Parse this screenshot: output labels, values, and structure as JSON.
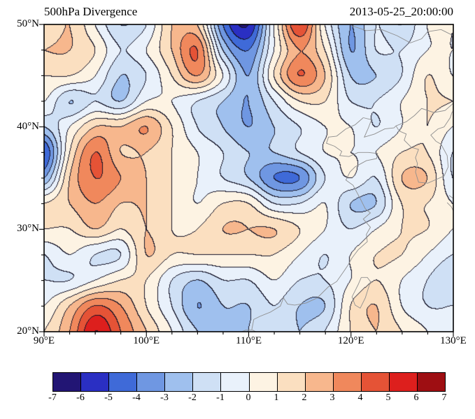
{
  "header": {
    "title": "500hPa Divergence",
    "timestamp": "2013-05-25_20:00:00"
  },
  "chart_data": {
    "type": "heatmap",
    "title": "500hPa Divergence",
    "time_label": "2013-05-25_20:00:00",
    "xlabel": "",
    "ylabel": "",
    "lon_range": [
      90,
      130
    ],
    "lat_range": [
      20,
      50
    ],
    "x_ticks": [
      {
        "value": 90,
        "label": "90°E"
      },
      {
        "value": 100,
        "label": "100°E"
      },
      {
        "value": 110,
        "label": "110°E"
      },
      {
        "value": 120,
        "label": "120°E"
      },
      {
        "value": 130,
        "label": "130°E"
      }
    ],
    "y_ticks": [
      {
        "value": 50,
        "label": "50°N"
      },
      {
        "value": 40,
        "label": "40°N"
      },
      {
        "value": 30,
        "label": "30°N"
      },
      {
        "value": 20,
        "label": "20°N"
      }
    ],
    "minor_tick_step": 2.5,
    "levels": [
      -7,
      -6,
      -5,
      -4,
      -3,
      -2,
      -1,
      0,
      1,
      2,
      3,
      4,
      5,
      6,
      7
    ],
    "colors": [
      "#221574",
      "#2a2fc3",
      "#3f6ad8",
      "#6f97e2",
      "#9fc0ee",
      "#cfe0f5",
      "#e9f1fb",
      "#fdf3e3",
      "#fbdfc0",
      "#f7b78d",
      "#f0885c",
      "#e55336",
      "#dd1f1d",
      "#9e0e12"
    ],
    "contour_line_color": "#141428",
    "coastline_color": "#8f8f8f",
    "grid": {
      "lons": [
        90,
        92.5,
        95,
        97.5,
        100,
        102.5,
        105,
        107.5,
        110,
        112.5,
        115,
        117.5,
        120,
        122.5,
        125,
        127.5,
        130
      ],
      "lats": [
        50,
        47.5,
        45,
        42.5,
        40,
        37.5,
        35,
        32.5,
        30,
        27.5,
        25,
        22.5,
        20
      ],
      "values": [
        [
          1,
          2,
          0,
          -2,
          -1,
          2,
          2,
          -4,
          -6,
          0,
          5,
          0,
          -3,
          -1,
          -2,
          0,
          0
        ],
        [
          2,
          2,
          1,
          -1,
          0,
          2,
          4,
          -2,
          -4,
          0,
          3,
          1,
          -3,
          -1,
          -1,
          0,
          0
        ],
        [
          1,
          1,
          0,
          -2,
          -1,
          1,
          3,
          0,
          -3,
          1,
          4,
          2,
          -2,
          -2,
          -1,
          1,
          0
        ],
        [
          0,
          -2,
          -1,
          -2,
          0,
          0,
          -1,
          -2,
          -3,
          -1,
          1,
          1,
          -1,
          -1,
          0,
          1,
          1
        ],
        [
          -2,
          0,
          2,
          2,
          3,
          1,
          -1,
          -2,
          -3,
          -2,
          -1,
          0,
          0,
          -1,
          0,
          1,
          0
        ],
        [
          -5,
          1,
          4,
          2,
          2,
          1,
          0,
          -1,
          -2,
          -2,
          -1,
          0,
          0,
          0,
          1,
          1,
          -1
        ],
        [
          -3,
          2,
          4,
          3,
          2,
          1,
          0,
          -1,
          -2,
          -4,
          -4,
          -1,
          0,
          -1,
          2,
          2,
          -1
        ],
        [
          1,
          2,
          3,
          2,
          2,
          1,
          0,
          1,
          1,
          -1,
          -1,
          0,
          -2,
          -2,
          1,
          1,
          0
        ],
        [
          1,
          1,
          2,
          1,
          2,
          1,
          1,
          2,
          2,
          2,
          1,
          0,
          -1,
          0,
          1,
          1,
          0
        ],
        [
          -1,
          0,
          -1,
          -1,
          2,
          1,
          1,
          1,
          1,
          1,
          0,
          -1,
          0,
          1,
          1,
          0,
          -1
        ],
        [
          -1,
          -1,
          0,
          1,
          1,
          -1,
          -2,
          -1,
          -1,
          0,
          -1,
          -1,
          0,
          1,
          0,
          -1,
          -2
        ],
        [
          0,
          2,
          4,
          3,
          1,
          -1,
          -3,
          -2,
          -2,
          -1,
          -2,
          -2,
          1,
          2,
          0,
          -1,
          -1
        ],
        [
          1,
          3,
          6,
          4,
          2,
          0,
          -2,
          -2,
          -2,
          -1,
          -2,
          -1,
          1,
          2,
          1,
          0,
          -1
        ]
      ]
    }
  },
  "coastlines": [
    [
      [
        121.2,
        40.9
      ],
      [
        120.4,
        40.2
      ],
      [
        119.5,
        39.8
      ],
      [
        118.6,
        39.1
      ],
      [
        117.8,
        39.0
      ],
      [
        117.6,
        38.4
      ],
      [
        118.4,
        38.1
      ],
      [
        119.1,
        37.6
      ],
      [
        118.9,
        37.2
      ],
      [
        119.8,
        37.1
      ],
      [
        120.7,
        37.5
      ],
      [
        121.7,
        37.5
      ],
      [
        122.6,
        37.4
      ],
      [
        122.5,
        36.9
      ],
      [
        121.5,
        36.7
      ],
      [
        120.4,
        36.1
      ],
      [
        119.9,
        35.6
      ],
      [
        119.5,
        34.8
      ],
      [
        120.2,
        34.3
      ],
      [
        120.9,
        33.0
      ],
      [
        121.4,
        32.0
      ],
      [
        121.9,
        31.6
      ],
      [
        121.2,
        31.0
      ],
      [
        121.9,
        30.2
      ],
      [
        121.5,
        29.5
      ],
      [
        121.6,
        28.8
      ],
      [
        120.7,
        28.0
      ],
      [
        120.1,
        27.2
      ],
      [
        119.7,
        26.5
      ],
      [
        119.3,
        25.9
      ],
      [
        118.6,
        24.9
      ],
      [
        117.8,
        24.4
      ],
      [
        116.7,
        23.3
      ],
      [
        115.6,
        22.8
      ],
      [
        114.5,
        22.6
      ],
      [
        113.8,
        22.7
      ],
      [
        113.4,
        23.3
      ],
      [
        113.1,
        22.5
      ],
      [
        112.1,
        21.9
      ],
      [
        111.1,
        21.5
      ],
      [
        110.5,
        21.2
      ],
      [
        110.3,
        20.2
      ]
    ],
    [
      [
        121.2,
        40.9
      ],
      [
        122.0,
        40.7
      ],
      [
        121.7,
        39.9
      ],
      [
        121.3,
        39.0
      ],
      [
        122.3,
        39.3
      ],
      [
        123.3,
        39.8
      ],
      [
        124.2,
        39.9
      ],
      [
        124.4,
        40.1
      ],
      [
        125.4,
        40.5
      ],
      [
        126.2,
        41.1
      ],
      [
        126.9,
        41.8
      ],
      [
        128.1,
        41.4
      ],
      [
        129.2,
        41.6
      ],
      [
        130.0,
        42.3
      ]
    ],
    [
      [
        124.4,
        40.1
      ],
      [
        124.7,
        39.6
      ],
      [
        125.4,
        39.3
      ],
      [
        125.2,
        38.7
      ],
      [
        125.9,
        38.0
      ],
      [
        126.6,
        37.8
      ],
      [
        126.3,
        37.0
      ],
      [
        126.5,
        36.4
      ],
      [
        126.3,
        35.6
      ],
      [
        126.6,
        34.6
      ],
      [
        127.5,
        34.5
      ],
      [
        128.4,
        34.9
      ],
      [
        129.1,
        35.2
      ],
      [
        129.5,
        36.1
      ],
      [
        129.4,
        37.2
      ],
      [
        128.8,
        38.3
      ],
      [
        128.3,
        38.6
      ],
      [
        127.8,
        39.2
      ],
      [
        128.5,
        39.8
      ],
      [
        129.1,
        40.0
      ],
      [
        129.7,
        40.9
      ],
      [
        129.9,
        41.5
      ]
    ],
    [
      [
        121.0,
        25.3
      ],
      [
        121.6,
        25.3
      ],
      [
        121.9,
        24.9
      ],
      [
        121.4,
        23.3
      ],
      [
        120.9,
        22.3
      ],
      [
        120.4,
        22.6
      ],
      [
        120.1,
        23.4
      ],
      [
        120.7,
        24.6
      ],
      [
        121.0,
        25.3
      ]
    ],
    [
      [
        109.3,
        20.0
      ],
      [
        109.7,
        20.15
      ],
      [
        110.4,
        20.15
      ],
      [
        110.7,
        20.0
      ]
    ],
    [
      [
        129.4,
        32.6
      ],
      [
        129.8,
        32.2
      ],
      [
        130.0,
        31.8
      ]
    ],
    [
      [
        129.6,
        33.3
      ],
      [
        130.0,
        33.0
      ]
    ],
    [
      [
        120.0,
        49.9
      ],
      [
        121.5,
        49.4
      ],
      [
        123.0,
        49.5
      ],
      [
        124.5,
        48.9
      ],
      [
        125.8,
        48.2
      ],
      [
        126.9,
        48.6
      ],
      [
        127.5,
        49.3
      ],
      [
        128.8,
        49.5
      ],
      [
        130.0,
        48.9
      ]
    ]
  ]
}
